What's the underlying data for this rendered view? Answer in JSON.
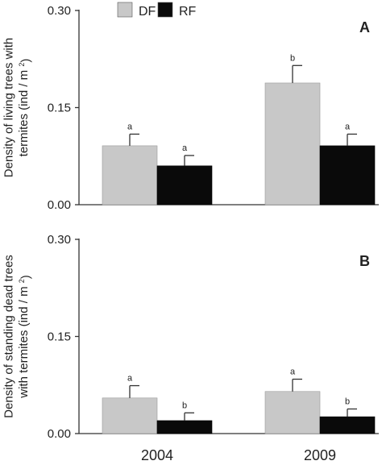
{
  "legend": [
    {
      "label": "DF",
      "color": "#c8c8c8"
    },
    {
      "label": "RF",
      "color": "#0a0a0a"
    }
  ],
  "chart_data": [
    {
      "type": "bar",
      "panel": "A",
      "title": "",
      "ylabel": "Density of living trees with termites (ind / m 2)",
      "ylabel_lines": [
        "Density of living trees with",
        "termites (ind / m ",
        "2",
        ")"
      ],
      "ylim": [
        0,
        0.3
      ],
      "yticks": [
        "0.00",
        "0.15",
        "0.30"
      ],
      "ytick_values": [
        0,
        0.15,
        0.3
      ],
      "categories": [
        "2004",
        "2009"
      ],
      "show_xtick_labels": false,
      "series": [
        {
          "name": "DF",
          "color": "#c8c8c8",
          "values": [
            0.091,
            0.188
          ],
          "errors": [
            0.018,
            0.027
          ],
          "labels": [
            "a",
            "b"
          ]
        },
        {
          "name": "RF",
          "color": "#0a0a0a",
          "values": [
            0.06,
            0.091
          ],
          "errors": [
            0.016,
            0.018
          ],
          "labels": [
            "a",
            "a"
          ]
        }
      ]
    },
    {
      "type": "bar",
      "panel": "B",
      "title": "",
      "ylabel": "Density of standing dead trees with termites (ind / m 2)",
      "ylabel_lines": [
        "Density of standing dead trees",
        "with termites (ind / m ",
        "2",
        ")"
      ],
      "ylim": [
        0,
        0.3
      ],
      "yticks": [
        "0.00",
        "0.15",
        "0.30"
      ],
      "ytick_values": [
        0,
        0.15,
        0.3
      ],
      "categories": [
        "2004",
        "2009"
      ],
      "show_xtick_labels": true,
      "series": [
        {
          "name": "DF",
          "color": "#c8c8c8",
          "values": [
            0.055,
            0.065
          ],
          "errors": [
            0.019,
            0.019
          ],
          "labels": [
            "a",
            "a"
          ]
        },
        {
          "name": "RF",
          "color": "#0a0a0a",
          "values": [
            0.02,
            0.026
          ],
          "errors": [
            0.012,
            0.012
          ],
          "labels": [
            "b",
            "b"
          ]
        }
      ]
    }
  ]
}
